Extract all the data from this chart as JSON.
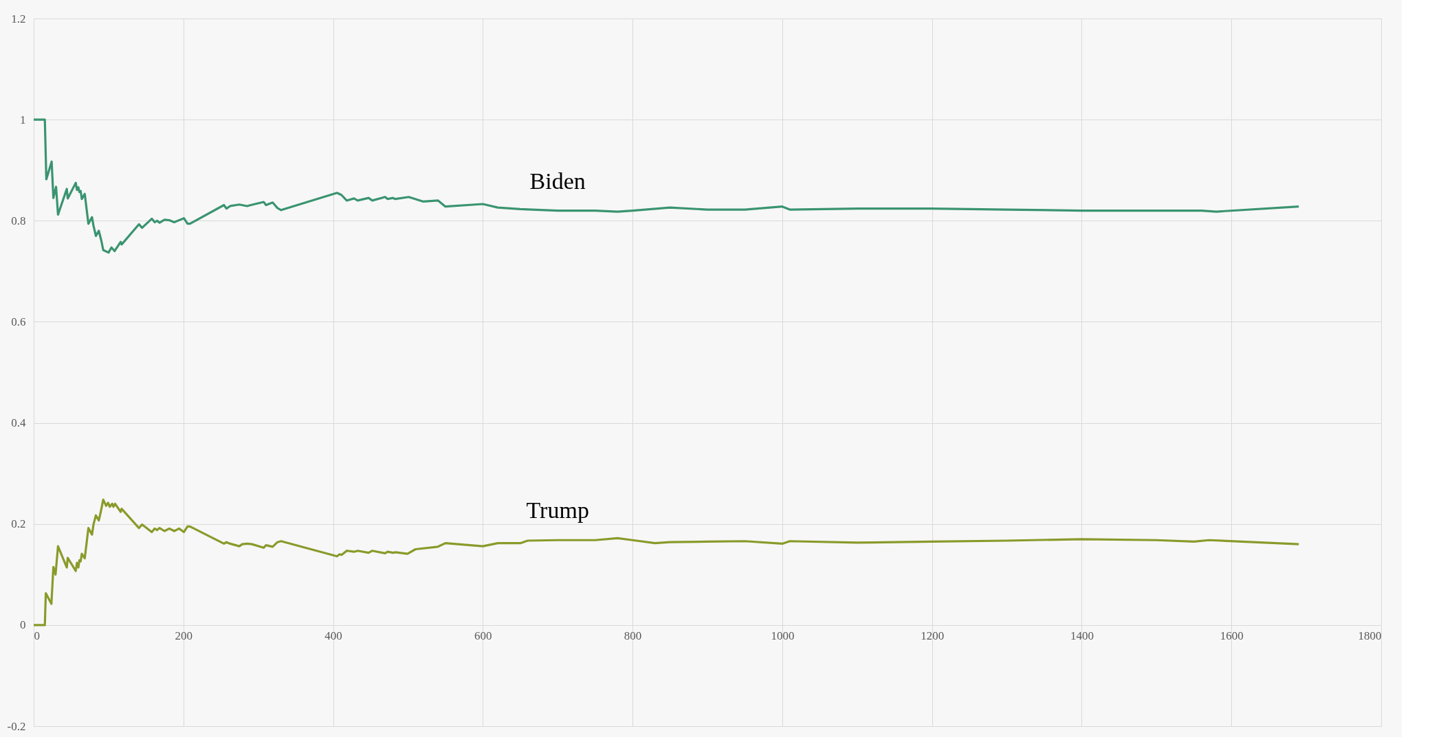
{
  "chart_data": {
    "type": "line",
    "xlim": [
      0,
      1800
    ],
    "ylim": [
      -0.2,
      1.2
    ],
    "xticks": [
      0,
      200,
      400,
      600,
      800,
      1000,
      1200,
      1400,
      1600,
      1800
    ],
    "yticks": [
      -0.2,
      0,
      0.2,
      0.4,
      0.6,
      0.8,
      1,
      1.2
    ],
    "grid": true,
    "marker": "none",
    "line_style": "solid",
    "series": [
      {
        "name": "Biden",
        "color": "#3a9470",
        "x": [
          0,
          14.9,
          16.9,
          24.0,
          26.3,
          29.9,
          32.5,
          44.2,
          45.5,
          56.2,
          57.8,
          59.7,
          61.0,
          62.7,
          64.3,
          68.2,
          73.1,
          77.9,
          79.9,
          83.1,
          87.0,
          90.3,
          92.9,
          100.0,
          103.9,
          108.1,
          116.2,
          117.5,
          140.6,
          144.8,
          157.8,
          161.7,
          164.9,
          168.2,
          174.7,
          181.2,
          187.7,
          200.7,
          205.5,
          208.8,
          254.2,
          257.5,
          262.4,
          274.7,
          285.1,
          290.0,
          307.2,
          310.4,
          319.2,
          325.7,
          330.5,
          405.2,
          411.1,
          418.2,
          427.9,
          432.8,
          447.4,
          452.3,
          469.5,
          472.8,
          479.9,
          483.2,
          501.0,
          520,
          540,
          550,
          600,
          620,
          650,
          700,
          750,
          780,
          800,
          850,
          900,
          950,
          1000,
          1010,
          1100,
          1200,
          1300,
          1400,
          1500,
          1560,
          1580,
          1690
        ],
        "values": [
          1.0,
          1.0,
          0.882,
          0.917,
          0.845,
          0.867,
          0.812,
          0.863,
          0.844,
          0.875,
          0.861,
          0.866,
          0.857,
          0.859,
          0.843,
          0.853,
          0.794,
          0.807,
          0.79,
          0.77,
          0.78,
          0.761,
          0.742,
          0.737,
          0.747,
          0.74,
          0.758,
          0.753,
          0.793,
          0.786,
          0.804,
          0.797,
          0.8,
          0.796,
          0.802,
          0.801,
          0.797,
          0.805,
          0.794,
          0.794,
          0.831,
          0.824,
          0.829,
          0.832,
          0.829,
          0.831,
          0.837,
          0.831,
          0.836,
          0.825,
          0.821,
          0.855,
          0.851,
          0.84,
          0.844,
          0.84,
          0.845,
          0.84,
          0.847,
          0.843,
          0.845,
          0.843,
          0.847,
          0.838,
          0.84,
          0.828,
          0.833,
          0.826,
          0.823,
          0.82,
          0.82,
          0.818,
          0.82,
          0.826,
          0.822,
          0.822,
          0.828,
          0.822,
          0.824,
          0.824,
          0.822,
          0.82,
          0.82,
          0.82,
          0.818,
          0.828
        ]
      },
      {
        "name": "Trump",
        "color": "#8a9a2a",
        "x": [
          0,
          14.9,
          16.2,
          23.7,
          26.3,
          29.2,
          32.5,
          44.2,
          45.5,
          56.2,
          57.8,
          59.7,
          61.0,
          62.7,
          64.3,
          68.2,
          73.1,
          77.9,
          79.9,
          83.1,
          87.0,
          89.6,
          92.9,
          96.8,
          99.4,
          101.6,
          104.9,
          106.5,
          108.8,
          116.2,
          117.5,
          140.6,
          144.8,
          157.8,
          161.7,
          164.9,
          168.2,
          174.7,
          181.2,
          187.7,
          194.2,
          200.7,
          205.5,
          208.8,
          254.2,
          257.5,
          262.4,
          274.7,
          278.6,
          285.1,
          291.6,
          307.2,
          310.4,
          319.2,
          325.7,
          330.5,
          405.2,
          408.4,
          411.6,
          418.2,
          427.9,
          432.8,
          447.4,
          452.3,
          469.5,
          472.8,
          479.9,
          483.2,
          499.4,
          510,
          540,
          550,
          600,
          620,
          650,
          660,
          700,
          750,
          780,
          800,
          830,
          850,
          900,
          950,
          1000,
          1010,
          1100,
          1200,
          1300,
          1400,
          1500,
          1550,
          1570,
          1690
        ],
        "values": [
          0,
          0,
          0.063,
          0.042,
          0.115,
          0.1,
          0.156,
          0.114,
          0.133,
          0.107,
          0.123,
          0.114,
          0.128,
          0.126,
          0.141,
          0.132,
          0.192,
          0.179,
          0.199,
          0.217,
          0.207,
          0.224,
          0.248,
          0.236,
          0.242,
          0.234,
          0.24,
          0.234,
          0.24,
          0.224,
          0.23,
          0.192,
          0.199,
          0.184,
          0.191,
          0.188,
          0.192,
          0.186,
          0.191,
          0.186,
          0.191,
          0.184,
          0.195,
          0.195,
          0.161,
          0.164,
          0.161,
          0.156,
          0.16,
          0.161,
          0.16,
          0.153,
          0.158,
          0.155,
          0.164,
          0.166,
          0.136,
          0.14,
          0.139,
          0.147,
          0.145,
          0.147,
          0.143,
          0.147,
          0.142,
          0.145,
          0.143,
          0.144,
          0.141,
          0.15,
          0.155,
          0.162,
          0.156,
          0.162,
          0.162,
          0.167,
          0.168,
          0.168,
          0.172,
          0.168,
          0.162,
          0.164,
          0.165,
          0.166,
          0.161,
          0.166,
          0.163,
          0.165,
          0.167,
          0.17,
          0.168,
          0.165,
          0.168,
          0.16
        ]
      }
    ]
  }
}
